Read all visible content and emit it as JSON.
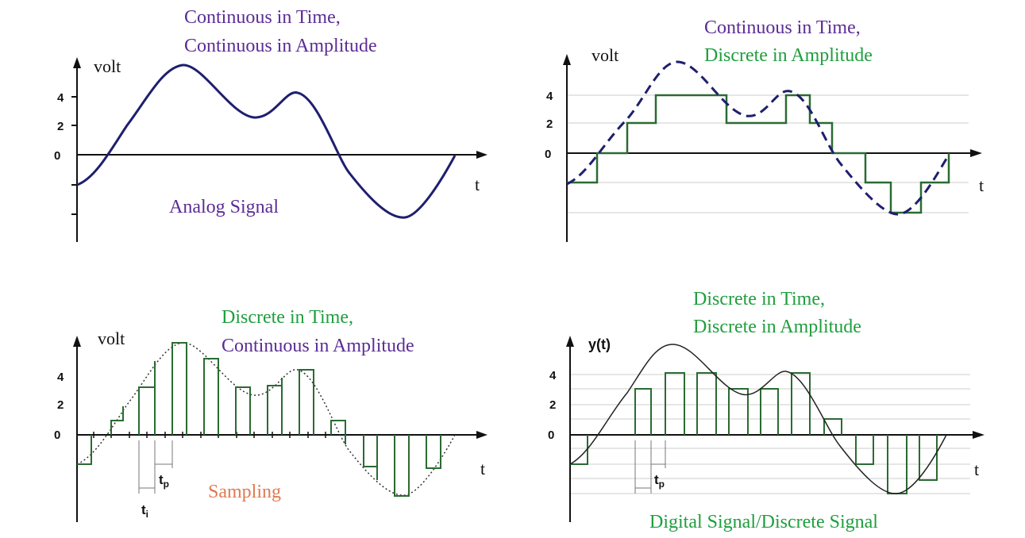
{
  "colors": {
    "purple": "#5b2c96",
    "green": "#1f9e3e",
    "orange": "#e07a50",
    "navy": "#1f1f6e",
    "step": "#2a6b32",
    "axis": "#111111",
    "grid": "#cccccc"
  },
  "panels": {
    "analog": {
      "title_line1": "Continuous in Time,",
      "title_line2": "Continuous in Amplitude",
      "ylabel": "volt",
      "xlabel": "t",
      "caption": "Analog Signal",
      "ticks": [
        "4",
        "2",
        "0"
      ]
    },
    "quantized": {
      "title_line1": "Continuous in Time,",
      "title_line2": "Discrete in Amplitude",
      "ylabel": "volt",
      "xlabel": "t",
      "ticks": [
        "4",
        "2",
        "0"
      ]
    },
    "sampled": {
      "title_line1": "Discrete in Time,",
      "title_line2": "Continuous in Amplitude",
      "ylabel": "volt",
      "xlabel": "t",
      "caption": "Sampling",
      "ticks": [
        "4",
        "2",
        "0"
      ],
      "interval_label": "t",
      "interval_sub": "i",
      "pulse_label": "t",
      "pulse_sub": "p"
    },
    "digital": {
      "title_line1": "Discrete in Time,",
      "title_line2": "Discrete in Amplitude",
      "ylabel": "y(t)",
      "xlabel": "t",
      "caption": "Digital Signal/Discrete Signal",
      "ticks": [
        "4",
        "2",
        "0"
      ],
      "pulse_label": "t",
      "pulse_sub": "p"
    }
  }
}
